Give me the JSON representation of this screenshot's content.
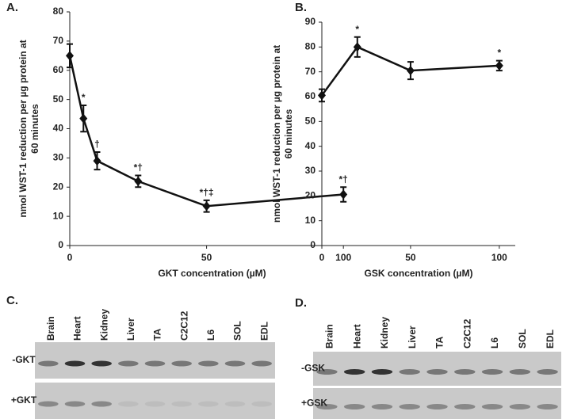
{
  "chart_data": [
    {
      "type": "line",
      "title": "A.",
      "ylabel": [
        "nmol WST-1 reduction per µg protein at",
        "60 minutes"
      ],
      "xlabel": "GKT concentration (µM)",
      "x": [
        0,
        5,
        10,
        25,
        50,
        100
      ],
      "series": [
        {
          "color": "#111111",
          "values": [
            65,
            43.5,
            29,
            22,
            13.5,
            17.5
          ],
          "errors": [
            4,
            4.5,
            3,
            2,
            2,
            2.5
          ]
        }
      ],
      "annotations": [
        null,
        "*",
        "†",
        "*†",
        "*†‡",
        "*†"
      ],
      "xlim": [
        0,
        104
      ],
      "xticks": [
        0,
        50,
        100
      ],
      "ylim": [
        0,
        80
      ],
      "yticks": [
        0,
        10,
        20,
        30,
        40,
        50,
        60,
        70,
        80
      ]
    },
    {
      "type": "line",
      "title": "B.",
      "ylabel": [
        "nmol WST-1 reduction per µg protein at",
        "60 minutes"
      ],
      "xlabel": "GSK concentration (µM)",
      "x": [
        0,
        20,
        50,
        100
      ],
      "series": [
        {
          "color": "#111111",
          "values": [
            60.5,
            80,
            70.5,
            72.5
          ],
          "errors": [
            2.5,
            4,
            3.5,
            2
          ]
        }
      ],
      "annotations": [
        null,
        "*",
        null,
        "*"
      ],
      "xlim": [
        0,
        109
      ],
      "xticks": [
        0,
        50,
        100
      ],
      "ylim": [
        0,
        90
      ],
      "yticks": [
        0,
        10,
        20,
        30,
        40,
        50,
        60,
        70,
        80,
        90
      ]
    }
  ],
  "gels": [
    {
      "title": "C.",
      "lanes": [
        "Brain",
        "Heart",
        "Kidney",
        "Liver",
        "TA",
        "C2C12",
        "L6",
        "SOL",
        "EDL"
      ],
      "rows": [
        "-GKT",
        "+GKT"
      ]
    },
    {
      "title": "D.",
      "lanes": [
        "Brain",
        "Heart",
        "Kidney",
        "Liver",
        "TA",
        "C2C12",
        "L6",
        "SOL",
        "EDL"
      ],
      "rows": [
        "-GSK",
        "+GSK"
      ]
    }
  ]
}
